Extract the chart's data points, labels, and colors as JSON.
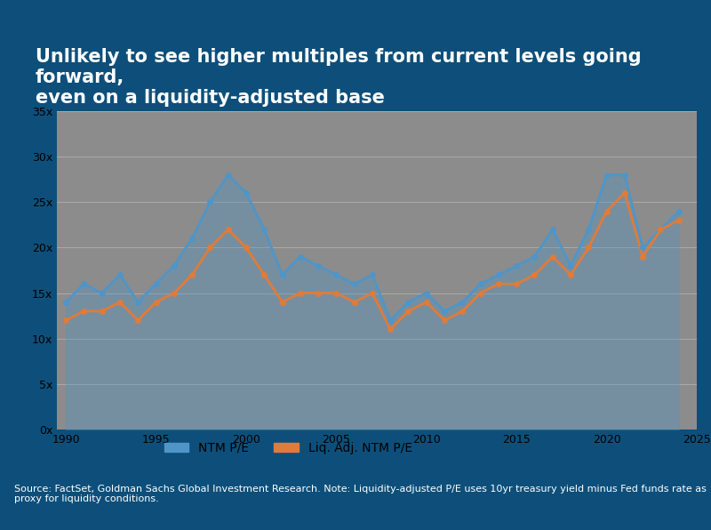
{
  "title": "Unlikely to see higher multiples from current levels going forward,\neven on a liquidity-adjusted base",
  "title_fontsize": 15,
  "title_color": "#ffffff",
  "header_color": "#0d4f7a",
  "plot_bg_color": "#8c8c8c",
  "footer_color": "#000000",
  "footer_text": "Source: FactSet, Goldman Sachs Global Investment Research. Note: Liquidity-adjusted P/E uses 10yr treasury yield minus Fed funds rate as proxy for liquidity conditions.",
  "footer_fontsize": 8,
  "ylabel": "",
  "xlabel": "",
  "line1_color": "#4f95c8",
  "line2_color": "#e07b39",
  "line1_label": "NTM P/E",
  "line2_label": "Liq. Adj. NTM P/E",
  "ylim": [
    0,
    35
  ],
  "yticks": [
    0,
    5,
    10,
    15,
    20,
    25,
    30,
    35
  ],
  "ytick_labels": [
    "0x",
    "5x",
    "10x",
    "15x",
    "20x",
    "25x",
    "30x",
    "35x"
  ],
  "x_years": [
    1990,
    1995,
    2000,
    2005,
    2010,
    2015,
    2020,
    2025
  ],
  "grid_color": "#aaaaaa",
  "line1_x": [
    1990,
    1991,
    1992,
    1993,
    1994,
    1995,
    1996,
    1997,
    1998,
    1999,
    2000,
    2001,
    2002,
    2003,
    2004,
    2005,
    2006,
    2007,
    2008,
    2009,
    2010,
    2011,
    2012,
    2013,
    2014,
    2015,
    2016,
    2017,
    2018,
    2019,
    2020,
    2021,
    2022,
    2023,
    2024
  ],
  "line1_y": [
    14,
    16,
    15,
    17,
    14,
    16,
    18,
    21,
    25,
    28,
    26,
    22,
    17,
    19,
    18,
    17,
    16,
    17,
    12,
    14,
    15,
    13,
    14,
    16,
    17,
    18,
    19,
    22,
    18,
    22,
    28,
    28,
    20,
    22,
    24
  ],
  "line2_x": [
    1990,
    1991,
    1992,
    1993,
    1994,
    1995,
    1996,
    1997,
    1998,
    1999,
    2000,
    2001,
    2002,
    2003,
    2004,
    2005,
    2006,
    2007,
    2008,
    2009,
    2010,
    2011,
    2012,
    2013,
    2014,
    2015,
    2016,
    2017,
    2018,
    2019,
    2020,
    2021,
    2022,
    2023,
    2024
  ],
  "line2_y": [
    12,
    13,
    13,
    14,
    12,
    14,
    15,
    17,
    20,
    22,
    20,
    17,
    14,
    15,
    15,
    15,
    14,
    15,
    11,
    13,
    14,
    12,
    13,
    15,
    16,
    16,
    17,
    19,
    17,
    20,
    24,
    26,
    19,
    22,
    23
  ]
}
